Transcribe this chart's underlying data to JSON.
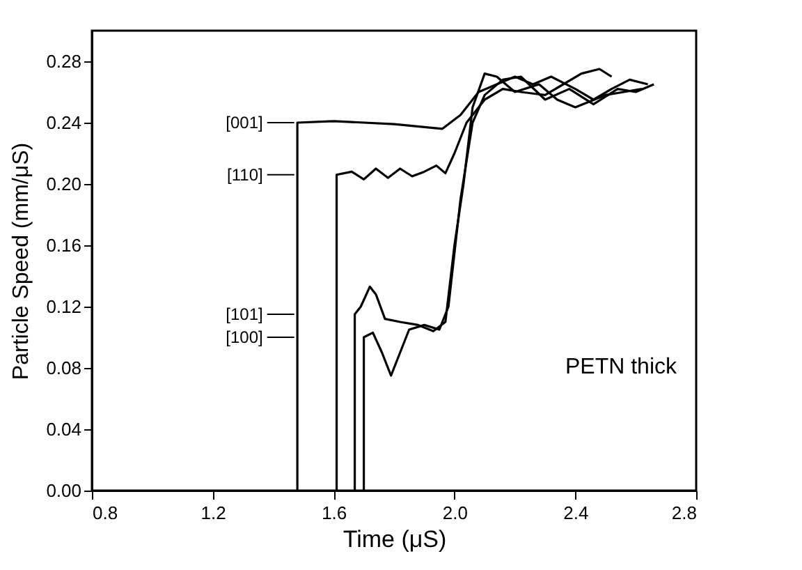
{
  "chart_data": {
    "type": "line",
    "xlabel": "Time (μS)",
    "ylabel": "Particle Speed (mm/μS)",
    "xlim": [
      0.8,
      2.8
    ],
    "xticks": [
      0.8,
      1.2,
      1.6,
      {
        "value": 2,
        "label": "2.0"
      },
      2.4,
      2.8
    ],
    "ylim": [
      0,
      0.3
    ],
    "yticks": [
      {
        "value": 0,
        "label": "0.00"
      },
      0.04,
      0.08,
      0.12,
      0.16,
      {
        "value": 0.2,
        "label": "0.20"
      },
      0.24,
      0.28
    ],
    "grid": false,
    "legend": "left",
    "marker": "none",
    "line_style": "solid",
    "annotations": [
      "PETN thick"
    ],
    "series": [
      {
        "name": "[001]",
        "color": "#000000",
        "x": [
          1.48,
          1.48,
          1.6,
          1.8,
          1.96,
          2.02,
          2.08,
          2.14,
          2.2,
          2.26,
          2.32,
          2.4,
          2.46,
          2.52,
          2.58,
          2.64
        ],
        "values": [
          0,
          0.24,
          0.241,
          0.239,
          0.236,
          0.245,
          0.26,
          0.265,
          0.27,
          0.265,
          0.27,
          0.262,
          0.255,
          0.262,
          0.268,
          0.265
        ]
      },
      {
        "name": "[110]",
        "color": "#000000",
        "x": [
          1.61,
          1.61,
          1.66,
          1.7,
          1.74,
          1.78,
          1.82,
          1.86,
          1.9,
          1.94,
          1.97,
          2.0,
          2.04,
          2.1,
          2.16,
          2.22,
          2.3,
          2.36,
          2.42,
          2.48,
          2.52
        ],
        "values": [
          0,
          0.206,
          0.208,
          0.203,
          0.21,
          0.204,
          0.21,
          0.205,
          0.208,
          0.212,
          0.207,
          0.22,
          0.24,
          0.255,
          0.262,
          0.26,
          0.258,
          0.265,
          0.272,
          0.275,
          0.27
        ]
      },
      {
        "name": "[101]",
        "color": "#000000",
        "x": [
          1.67,
          1.67,
          1.69,
          1.72,
          1.74,
          1.77,
          1.82,
          1.88,
          1.93,
          1.97,
          2.0,
          2.03,
          2.06,
          2.1,
          2.14,
          2.2,
          2.28,
          2.34,
          2.4,
          2.5,
          2.56,
          2.62
        ],
        "values": [
          0,
          0.115,
          0.12,
          0.133,
          0.128,
          0.112,
          0.11,
          0.108,
          0.104,
          0.11,
          0.16,
          0.2,
          0.25,
          0.272,
          0.27,
          0.26,
          0.265,
          0.255,
          0.25,
          0.258,
          0.26,
          0.262
        ]
      },
      {
        "name": "[100]",
        "color": "#000000",
        "x": [
          1.7,
          1.7,
          1.73,
          1.76,
          1.79,
          1.82,
          1.85,
          1.9,
          1.95,
          1.98,
          2.02,
          2.06,
          2.1,
          2.16,
          2.22,
          2.3,
          2.38,
          2.46,
          2.54,
          2.6,
          2.66
        ],
        "values": [
          0,
          0.1,
          0.103,
          0.09,
          0.075,
          0.09,
          0.105,
          0.108,
          0.105,
          0.12,
          0.19,
          0.24,
          0.258,
          0.268,
          0.27,
          0.255,
          0.262,
          0.252,
          0.262,
          0.26,
          0.265
        ]
      }
    ]
  }
}
